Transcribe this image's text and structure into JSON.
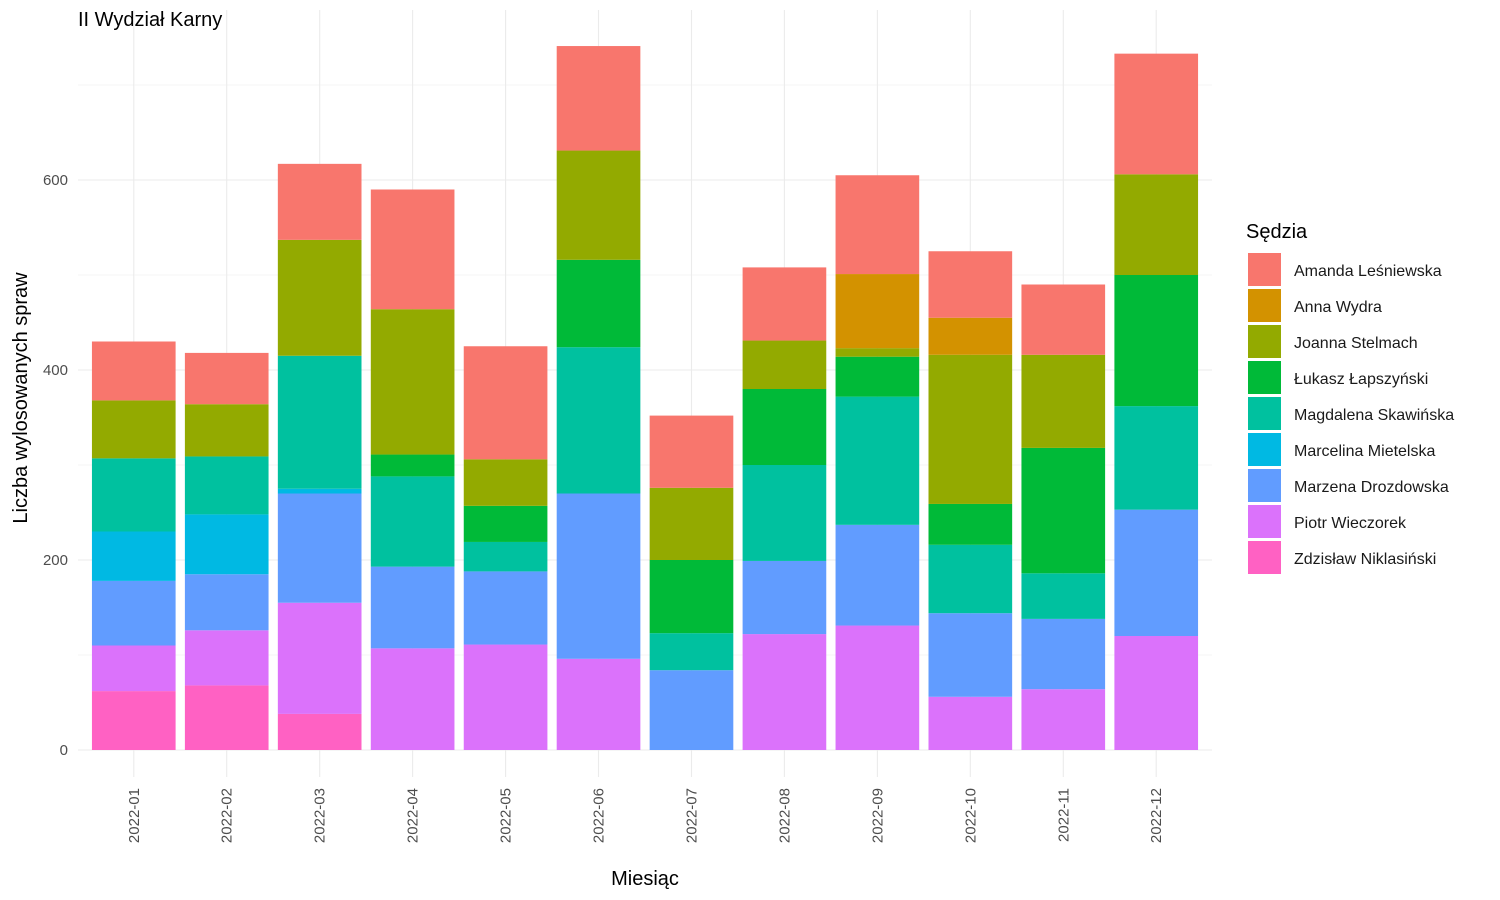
{
  "chart_data": {
    "type": "bar",
    "stacked": true,
    "title": "II Wydział Karny",
    "xlabel": "Miesiąc",
    "ylabel": "Liczba wylosowanych spraw",
    "ylim": [
      0,
      760
    ],
    "yticks": [
      0,
      200,
      400,
      600
    ],
    "grid": true,
    "legend_position": "right",
    "legend_title": "Sędzia",
    "categories": [
      "2022-01",
      "2022-02",
      "2022-03",
      "2022-04",
      "2022-05",
      "2022-06",
      "2022-07",
      "2022-08",
      "2022-09",
      "2022-10",
      "2022-11",
      "2022-12"
    ],
    "series": [
      {
        "name": "Zdzisław Niklasiński",
        "color": "#FF61C3",
        "values": [
          62,
          68,
          38,
          0,
          0,
          0,
          0,
          0,
          0,
          0,
          0,
          0
        ]
      },
      {
        "name": "Piotr Wieczorek",
        "color": "#DB72FB",
        "values": [
          48,
          58,
          117,
          107,
          111,
          96,
          0,
          122,
          131,
          56,
          64,
          120
        ]
      },
      {
        "name": "Marzena Drozdowska",
        "color": "#619CFF",
        "values": [
          68,
          59,
          115,
          86,
          77,
          174,
          84,
          77,
          106,
          88,
          74,
          133
        ]
      },
      {
        "name": "Marcelina Mietelska",
        "color": "#00B9E3",
        "values": [
          52,
          63,
          5,
          0,
          0,
          0,
          0,
          0,
          0,
          0,
          0,
          0
        ]
      },
      {
        "name": "Magdalena Skawińska",
        "color": "#00C19F",
        "values": [
          77,
          61,
          140,
          95,
          31,
          154,
          39,
          101,
          135,
          72,
          48,
          109
        ]
      },
      {
        "name": "Łukasz Łapszyński",
        "color": "#00BA38",
        "values": [
          0,
          0,
          0,
          23,
          38,
          92,
          77,
          80,
          42,
          43,
          132,
          138
        ]
      },
      {
        "name": "Joanna Stelmach",
        "color": "#93AA00",
        "values": [
          61,
          55,
          122,
          153,
          49,
          115,
          76,
          51,
          9,
          157,
          98,
          106
        ]
      },
      {
        "name": "Anna Wydra",
        "color": "#D39200",
        "values": [
          0,
          0,
          0,
          0,
          0,
          0,
          0,
          0,
          78,
          39,
          0,
          0
        ]
      },
      {
        "name": "Amanda Leśniewska",
        "color": "#F8766D",
        "values": [
          62,
          54,
          80,
          126,
          119,
          110,
          76,
          77,
          104,
          70,
          74,
          127
        ]
      }
    ],
    "legend_order": [
      "Amanda Leśniewska",
      "Anna Wydra",
      "Joanna Stelmach",
      "Łukasz Łapszyński",
      "Magdalena Skawińska",
      "Marcelina Mietelska",
      "Marzena Drozdowska",
      "Piotr Wieczorek",
      "Zdzisław Niklasiński"
    ]
  }
}
